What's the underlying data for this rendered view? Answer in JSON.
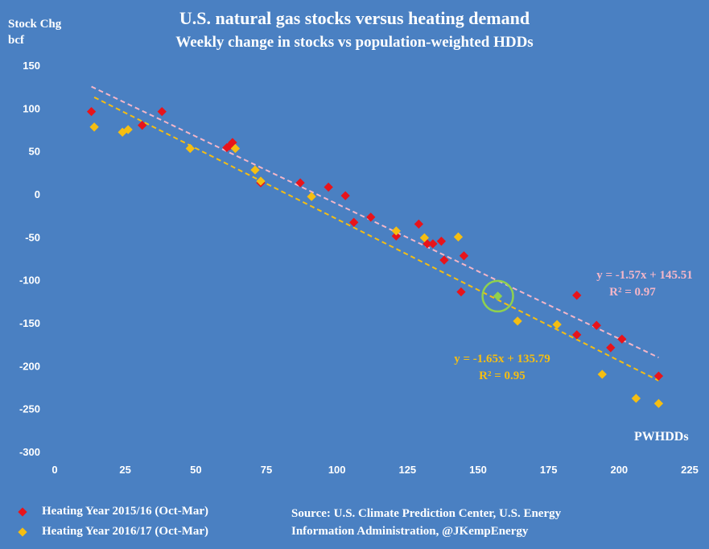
{
  "chart_data": {
    "type": "scatter",
    "title": "U.S. natural gas stocks versus heating demand",
    "subtitle": "Weekly change in stocks vs population-weighted HDDs",
    "ylabel_line1": "Stock Chg",
    "ylabel_line2": "bcf",
    "xlabel": "PWHDDs",
    "xlim": [
      0,
      225
    ],
    "ylim": [
      -300,
      150
    ],
    "xticks": [
      0,
      25,
      50,
      75,
      100,
      125,
      150,
      175,
      200,
      225
    ],
    "yticks": [
      150,
      100,
      50,
      0,
      -50,
      -100,
      -150,
      -200,
      -250,
      -300
    ],
    "series": [
      {
        "name": "Heating Year 2015/16 (Oct-Mar)",
        "color": "#e8141b",
        "x": [
          13,
          31,
          38,
          61,
          62,
          63,
          73,
          87,
          97,
          103,
          106,
          112,
          121,
          129,
          132,
          134,
          137,
          138,
          144,
          145,
          185,
          185,
          192,
          197,
          201,
          214
        ],
        "y": [
          96,
          80,
          96,
          54,
          56,
          60,
          13,
          13,
          8,
          -2,
          -33,
          -27,
          -49,
          -35,
          -58,
          -58,
          -55,
          -77,
          -114,
          -72,
          -118,
          -164,
          -153,
          -179,
          -169,
          -212
        ],
        "trend": {
          "slope": -1.57,
          "intercept": 145.51,
          "x_range": [
            13,
            214
          ],
          "color": "#f4b6c8",
          "equation": "y = -1.57x + 145.51",
          "r2": "R² = 0.97"
        }
      },
      {
        "name": "Heating Year 2016/17 (Oct-Mar)",
        "color": "#f5be12",
        "x": [
          14,
          24,
          26,
          48,
          64,
          71,
          73,
          91,
          121,
          131,
          143,
          164,
          178,
          194,
          206,
          214
        ],
        "y": [
          78,
          72,
          75,
          53,
          53,
          28,
          15,
          -3,
          -43,
          -51,
          -50,
          -148,
          -152,
          -210,
          -238,
          -244
        ],
        "trend": {
          "slope": -1.65,
          "intercept": 135.79,
          "x_range": [
            14,
            214
          ],
          "color": "#f5be12",
          "equation": "y = -1.65x + 135.79",
          "r2": "R² = 0.95"
        }
      }
    ],
    "highlight": {
      "x": 157,
      "y": -119,
      "point_color": "#8fd14f",
      "ring_color": "#8fd14f"
    }
  },
  "source_line1": "Source: U.S. Climate Prediction Center, U.S. Energy",
  "source_line2": "Information Administration, @JKempEnergy"
}
